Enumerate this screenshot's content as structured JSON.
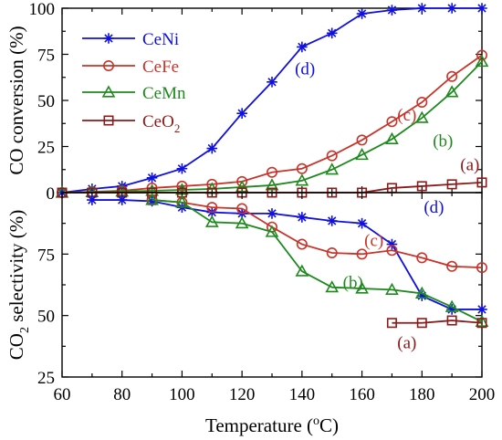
{
  "chart_data": [
    {
      "type": "line",
      "panel": "top",
      "ylabel": "CO conversion (%)",
      "ylim": [
        0,
        100
      ],
      "xlim": [
        60,
        200
      ],
      "yticks": [
        0,
        25,
        50,
        75,
        100
      ],
      "legend_placement": "top-left",
      "series": [
        {
          "name": "CeNi",
          "color": "#1010e0",
          "marker": "star",
          "x": [
            60,
            70,
            80,
            90,
            100,
            110,
            120,
            130,
            140,
            150,
            160,
            170,
            180,
            190,
            200
          ],
          "values": [
            0,
            2,
            3.5,
            8,
            13,
            24,
            43,
            60,
            79,
            86.5,
            97,
            99,
            100,
            100,
            100
          ]
        },
        {
          "name": "CeFe",
          "color": "#c8342a",
          "marker": "circle",
          "x": [
            60,
            70,
            80,
            90,
            100,
            110,
            120,
            130,
            140,
            150,
            160,
            170,
            180,
            190,
            200
          ],
          "values": [
            0,
            0.5,
            1,
            2.5,
            3.5,
            4.5,
            6,
            11,
            13,
            20,
            28.5,
            38.5,
            49,
            63,
            74.5
          ]
        },
        {
          "name": "CeMn",
          "color": "#1e8a1e",
          "marker": "triangle",
          "x": [
            60,
            70,
            80,
            90,
            100,
            110,
            120,
            130,
            140,
            150,
            160,
            170,
            180,
            190,
            200
          ],
          "values": [
            0,
            0.3,
            0.6,
            1,
            1.5,
            2,
            3,
            4,
            6.5,
            12.5,
            20.5,
            29,
            40.5,
            54.5,
            71
          ]
        },
        {
          "name": "CeO₂",
          "name_base": "CeO",
          "name_sub": "2",
          "color": "#8b1a1a",
          "marker": "square",
          "x": [
            60,
            70,
            80,
            90,
            100,
            110,
            120,
            130,
            140,
            150,
            160,
            170,
            180,
            190,
            200
          ],
          "values": [
            0,
            0,
            0,
            0,
            0,
            0,
            0,
            0,
            0,
            0,
            0,
            2.5,
            3.5,
            4.5,
            5.5
          ]
        }
      ],
      "annotations": [
        {
          "text": "(d)",
          "x": 141,
          "y": 67,
          "color": "#1010e0"
        },
        {
          "text": "(c)",
          "x": 175,
          "y": 42,
          "color": "#c8342a"
        },
        {
          "text": "(b)",
          "x": 187,
          "y": 28,
          "color": "#1e8a1e"
        },
        {
          "text": "(a)",
          "x": 196,
          "y": 15,
          "color": "#8b1a1a"
        }
      ]
    },
    {
      "type": "line",
      "panel": "bottom",
      "ylabel_base": "CO",
      "ylabel_sub": "2",
      "ylabel_rest": " selectivity (%)",
      "xlabel_base": "Temperature (",
      "xlabel_sup": "o",
      "xlabel_rest": "C)",
      "ylim": [
        25,
        100
      ],
      "xlim": [
        60,
        200
      ],
      "yticks": [
        25,
        50,
        75
      ],
      "xticks": [
        60,
        80,
        100,
        120,
        140,
        160,
        180,
        200
      ],
      "series": [
        {
          "name": "CeNi",
          "color": "#1010e0",
          "marker": "star",
          "x": [
            70,
            80,
            90,
            100,
            110,
            120,
            130,
            140,
            150,
            160,
            170,
            180,
            190,
            200
          ],
          "values": [
            97,
            97,
            96.5,
            94,
            92,
            91.5,
            91.5,
            90,
            88.5,
            87.5,
            79,
            58,
            52.5,
            52.5
          ]
        },
        {
          "name": "CeFe",
          "color": "#c8342a",
          "marker": "circle",
          "x": [
            90,
            100,
            110,
            120,
            130,
            140,
            150,
            160,
            170,
            180,
            190,
            200
          ],
          "values": [
            97,
            96,
            94,
            93.5,
            86,
            79,
            75.5,
            75,
            76.5,
            73.5,
            70,
            69.5
          ]
        },
        {
          "name": "CeMn",
          "color": "#1e8a1e",
          "marker": "triangle",
          "x": [
            90,
            100,
            110,
            120,
            130,
            140,
            150,
            160,
            170,
            180,
            190,
            200
          ],
          "values": [
            97,
            96,
            88,
            87.5,
            84,
            68,
            61.5,
            61,
            60.5,
            59,
            53.5,
            47.5
          ]
        },
        {
          "name": "CeO₂",
          "color": "#8b1a1a",
          "marker": "square",
          "x": [
            170,
            180,
            190,
            200
          ],
          "values": [
            47,
            47,
            48,
            47
          ]
        }
      ],
      "annotations": [
        {
          "text": "(d)",
          "x": 184,
          "y": 94,
          "color": "#1010e0"
        },
        {
          "text": "(c)",
          "x": 164,
          "y": 80.5,
          "color": "#c8342a"
        },
        {
          "text": "(b)",
          "x": 157,
          "y": 63.5,
          "color": "#1e8a1e"
        },
        {
          "text": "(a)",
          "x": 175,
          "y": 39,
          "color": "#8b1a1a"
        }
      ]
    }
  ]
}
